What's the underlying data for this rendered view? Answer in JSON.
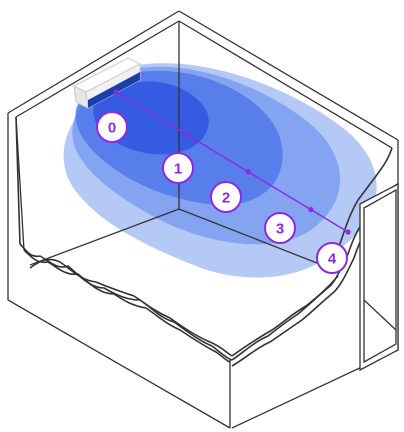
{
  "colors": {
    "outline": "#333333",
    "marker": "#8a2be2",
    "zone_outer": "#a8bff5",
    "zone_2": "#7b9df0",
    "zone_3": "#4f78ea",
    "zone_inner": "#2f55e0",
    "unit_body": "#f1f1f1",
    "unit_vent": "#1a3fa6"
  },
  "icons": {
    "ac_unit": "wall-mounted-air-conditioner-icon",
    "door": "doorway-icon"
  },
  "markers": [
    {
      "label": "0"
    },
    {
      "label": "1"
    },
    {
      "label": "2"
    },
    {
      "label": "3"
    },
    {
      "label": "4"
    }
  ]
}
